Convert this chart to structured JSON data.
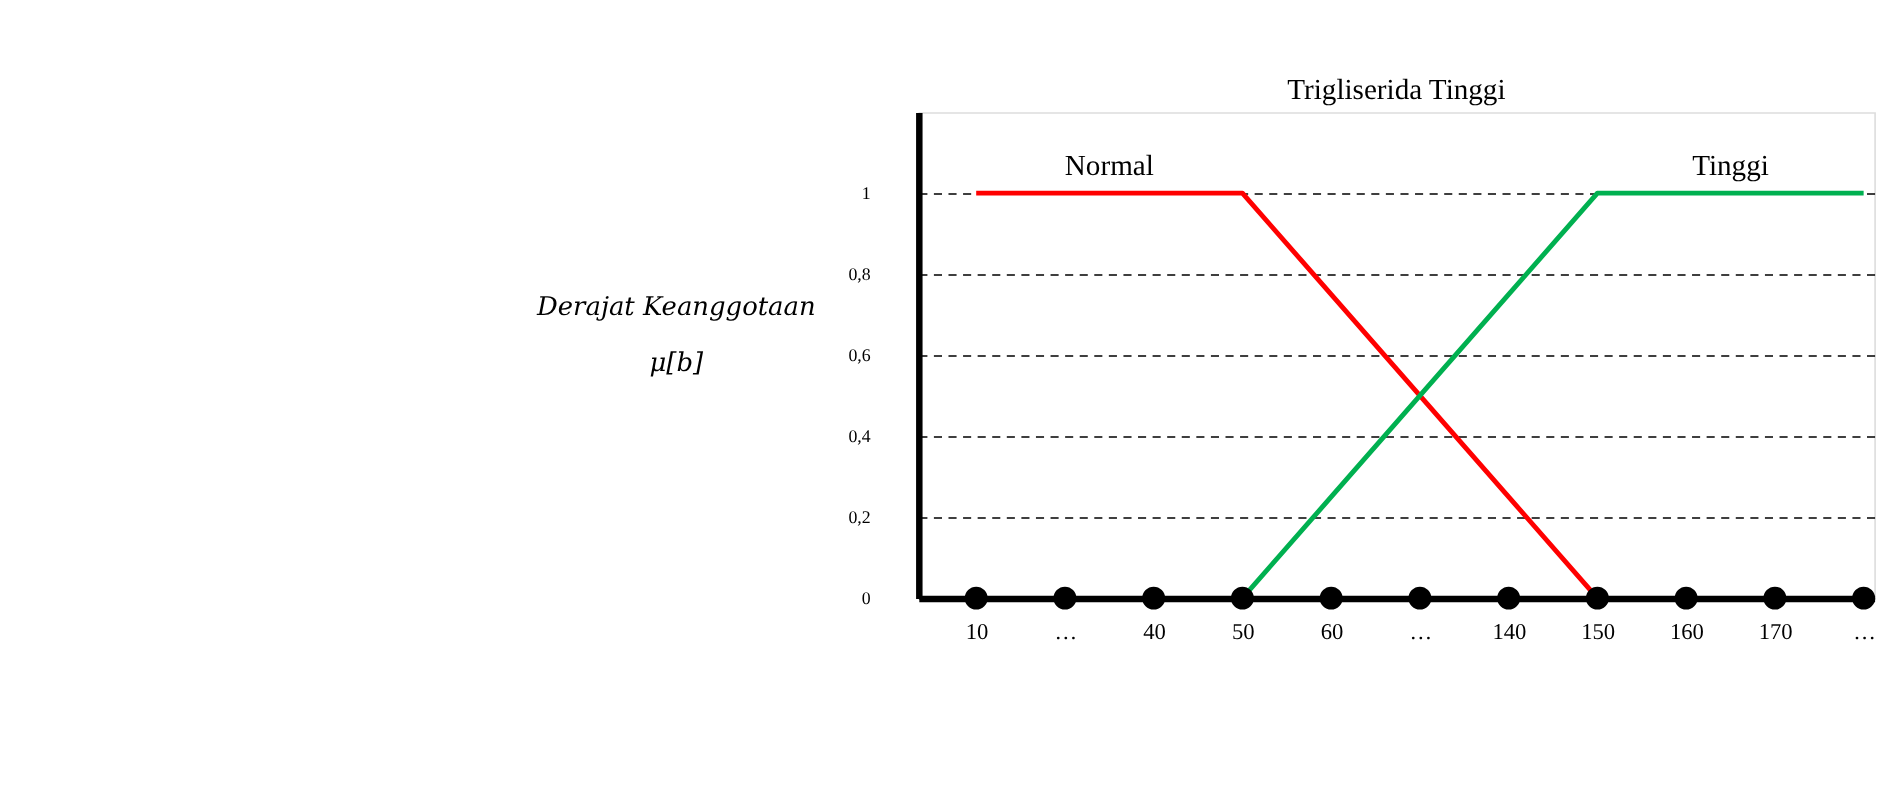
{
  "chart_data": {
    "type": "line",
    "title": "Trigliserida Tinggi",
    "ylabel": "Derajat Keanggotaan\nμ[b]",
    "categories": [
      "10",
      "…",
      "40",
      "50",
      "60",
      "…",
      "140",
      "150",
      "160",
      "170",
      "…"
    ],
    "series": [
      {
        "name": "Normal",
        "color": "#ff0000",
        "values": [
          1,
          1,
          1,
          1,
          0.75,
          0.5,
          0.25,
          0,
          null,
          null,
          null
        ]
      },
      {
        "name": "Tinggi",
        "color": "#00b050",
        "values": [
          null,
          null,
          null,
          0,
          0.25,
          0.5,
          0.75,
          1,
          1,
          1,
          1
        ]
      },
      {
        "type": "scatter",
        "color": "#000000",
        "values": [
          0,
          0,
          0,
          0,
          0,
          0,
          0,
          0,
          0,
          0,
          0
        ]
      }
    ],
    "ylim": [
      0,
      1.2
    ],
    "yticks": [
      0,
      {
        "value": 0.2,
        "label": "0,2"
      },
      {
        "value": 0.4,
        "label": "0,4"
      },
      {
        "value": 0.6,
        "label": "0,6"
      },
      {
        "value": 0.8,
        "label": "0,8"
      },
      1
    ],
    "grid": "y",
    "line_style": "solid"
  }
}
